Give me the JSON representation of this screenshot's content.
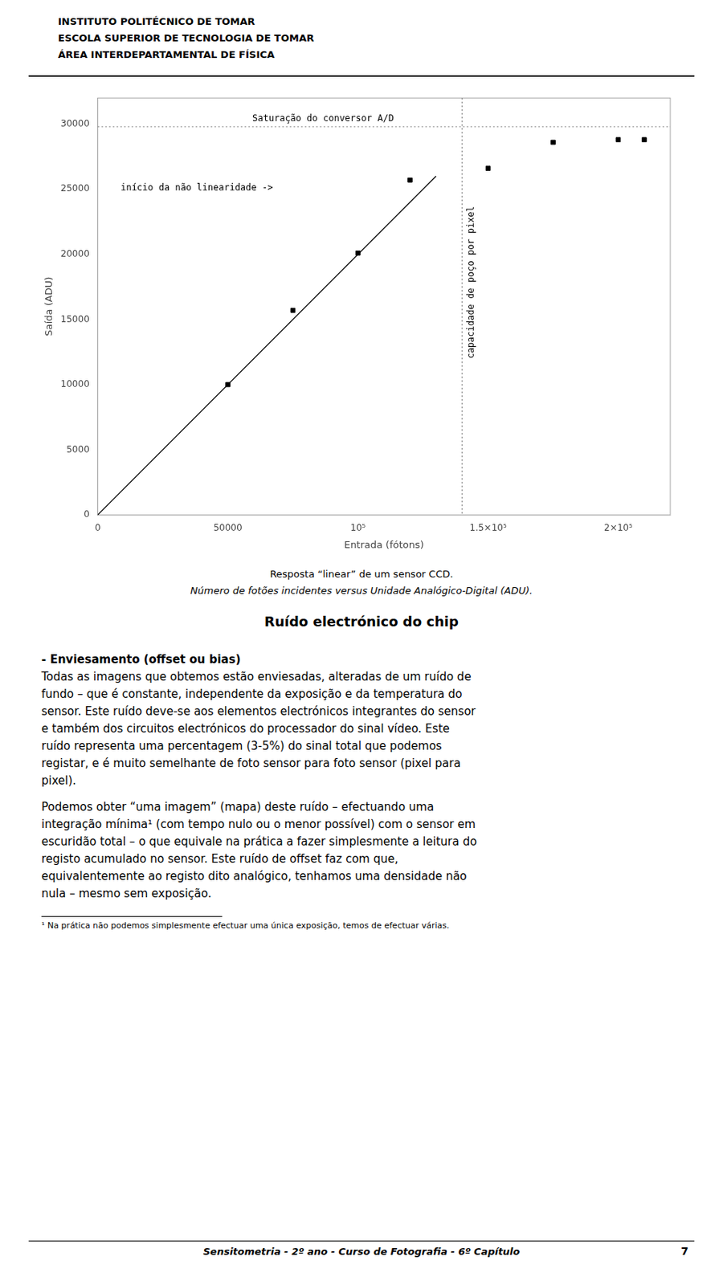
{
  "page": {
    "header": [
      "INSTITUTO POLITÉCNICO DE TOMAR",
      "ESCOLA SUPERIOR DE TECNOLOGIA DE TOMAR",
      "ÁREA INTERDEPARTAMENTAL DE FÍSICA"
    ],
    "section_title": "Ruído electrónico do chip",
    "body": [
      [
        "- Enviesamento (offset ou bias)",
        "Todas as imagens que obtemos estão enviesadas, alteradas de um ruído de",
        "fundo – que é constante, independente da exposição e da temperatura do",
        "sensor. Este ruído deve-se aos elementos electrónicos integrantes do sensor",
        "e também dos circuitos electrónicos do processador do sinal vídeo. Este",
        "ruído representa uma percentagem (3-5%) do sinal total que podemos",
        "registar, e é muito semelhante de foto sensor para foto sensor (pixel para",
        "pixel)."
      ],
      [
        "Podemos obter “uma imagem” (mapa) deste ruído – efectuando uma",
        "integração mínima¹ (com tempo nulo ou o menor possível) com o sensor em",
        "escuridão total – o que equivale na prática a fazer simplesmente a leitura do",
        "registo acumulado no sensor. Este ruído de offset faz com que,",
        "equivalentemente ao registo dito analógico, tenhamos uma densidade não",
        "nula – mesmo sem exposição."
      ]
    ],
    "footnote": "¹ Na prática não podemos simplesmente efectuar uma única exposição, temos de efectuar várias.",
    "footer": "Sensitometria  -  2º ano  -  Curso de Fotografia  -  6º Capítulo",
    "page_number": "7"
  },
  "chart_data": {
    "type": "scatter",
    "title": "Resposta “linear” de um sensor CCD.",
    "subtitle": "Número de fotões incidentes versus Unidade Analógico-Digital (ADU).",
    "xlabel": "Entrada (fótons)",
    "ylabel": "Saída (ADU)",
    "xlim": [
      0,
      220000
    ],
    "ylim": [
      0,
      32000
    ],
    "xticks": [
      0,
      50000,
      {
        "value": 100000,
        "label": "10⁵"
      },
      {
        "value": 150000,
        "label": "1.5×10⁵"
      },
      {
        "value": 200000,
        "label": "2×10⁵"
      }
    ],
    "yticks": [
      0,
      5000,
      10000,
      15000,
      20000,
      25000,
      30000
    ],
    "grid": false,
    "series": [
      {
        "type": "line",
        "color": "black",
        "line_style": "solid",
        "x": [
          0,
          130000
        ],
        "values": [
          0,
          26000
        ]
      },
      {
        "type": "scatter",
        "color": "black",
        "marker": "square",
        "x": [
          50000,
          75000,
          100000,
          120000,
          150000,
          175000,
          200000,
          210000
        ],
        "values": [
          10000,
          15700,
          20100,
          25700,
          26600,
          28600,
          28800,
          28800
        ]
      }
    ],
    "annotations": [
      {
        "type": "hline",
        "y": 29800,
        "label": "Saturação do conversor A/D",
        "color": "gray",
        "line_style": "dotted"
      },
      {
        "type": "vline",
        "x": 140000,
        "label": "capacidade de poço por pixel",
        "color": "gray",
        "line_style": "dotted"
      },
      {
        "type": "text",
        "label": "início da não linearidade ->"
      }
    ]
  }
}
